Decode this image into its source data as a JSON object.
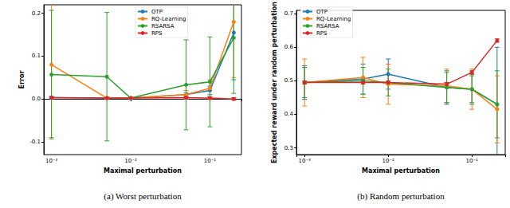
{
  "chart_data": [
    {
      "type": "line",
      "caption": "(a) Worst perturbation",
      "x_label": "Maximal perturbation",
      "y_label": "Error",
      "log": "x",
      "grid": false,
      "legend": "upper center",
      "marker": "circle",
      "x": [
        0.001,
        0.005,
        0.01,
        0.05,
        0.1,
        0.2
      ],
      "xlim": [
        0.0008,
        0.25
      ],
      "xticks": [
        {
          "value": 0.001,
          "label": "10⁻³"
        },
        {
          "value": 0.01,
          "label": "10⁻²"
        },
        {
          "value": 0.1,
          "label": "10⁻¹"
        }
      ],
      "ylim": [
        -0.13,
        0.22
      ],
      "yticks": [
        -0.1,
        {
          "value": 0,
          "label": "0.0"
        },
        0.1,
        0.2
      ],
      "series": [
        {
          "name": "OTP",
          "color": "#1f77b4",
          "values": [
            0.003,
            0.002,
            0.002,
            0.01,
            0.02,
            0.155
          ],
          "errors": [
            0.002,
            0.002,
            0.002,
            0.005,
            0.01,
            0.11
          ]
        },
        {
          "name": "RQ-Learning",
          "color": "#ff7f0e",
          "values": [
            0.08,
            0.002,
            0.002,
            0.01,
            0.025,
            0.18
          ],
          "errors": [
            0.17,
            0.002,
            0.002,
            0.01,
            0.02,
            0.13
          ]
        },
        {
          "name": "RSARSA",
          "color": "#2ca02c",
          "values": [
            0.057,
            0.052,
            0.002,
            0.033,
            0.04,
            0.143
          ],
          "errors": [
            0.15,
            0.15,
            0.002,
            0.105,
            0.105,
            0.13
          ]
        },
        {
          "name": "RPS",
          "color": "#d62728",
          "values": [
            0.003,
            0.002,
            0.002,
            0.003,
            0.002,
            0.0
          ],
          "errors": [
            0.003,
            0.003,
            0.003,
            0.003,
            0.003,
            0.003
          ]
        }
      ]
    },
    {
      "type": "line",
      "caption": "(b) Random perturbation",
      "x_label": "Maximal perturbation",
      "y_label": "Expected reward under random perturbation",
      "log": "x",
      "grid": false,
      "legend": "upper left",
      "marker": "circle",
      "x": [
        0.001,
        0.005,
        0.01,
        0.05,
        0.1,
        0.2
      ],
      "xlim": [
        0.0008,
        0.25
      ],
      "xticks": [
        {
          "value": 0.001,
          "label": "10⁻³"
        },
        {
          "value": 0.01,
          "label": "10⁻²"
        },
        {
          "value": 0.1,
          "label": "10⁻¹"
        }
      ],
      "ylim": [
        0.28,
        0.71
      ],
      "yticks": [
        0.3,
        0.4,
        0.5,
        0.6,
        0.7
      ],
      "series": [
        {
          "name": "OTP",
          "color": "#1f77b4",
          "values": [
            0.495,
            0.505,
            0.52,
            0.48,
            0.475,
            0.43
          ],
          "errors": [
            0.05,
            0.045,
            0.045,
            0.05,
            0.045,
            0.17
          ]
        },
        {
          "name": "RQ-Learning",
          "color": "#ff7f0e",
          "values": [
            0.495,
            0.51,
            0.49,
            0.485,
            0.475,
            0.415
          ],
          "errors": [
            0.07,
            0.06,
            0.06,
            0.05,
            0.06,
            0.1
          ]
        },
        {
          "name": "RSARSA",
          "color": "#2ca02c",
          "values": [
            0.495,
            0.5,
            0.495,
            0.48,
            0.475,
            0.43
          ],
          "errors": [
            0.045,
            0.04,
            0.04,
            0.045,
            0.04,
            0.1
          ]
        },
        {
          "name": "RPS",
          "color": "#d62728",
          "values": [
            0.495,
            0.495,
            0.495,
            0.49,
            0.525,
            0.62
          ],
          "errors": [
            0.005,
            0.005,
            0.005,
            0.005,
            0.005,
            0.005
          ]
        }
      ]
    }
  ]
}
